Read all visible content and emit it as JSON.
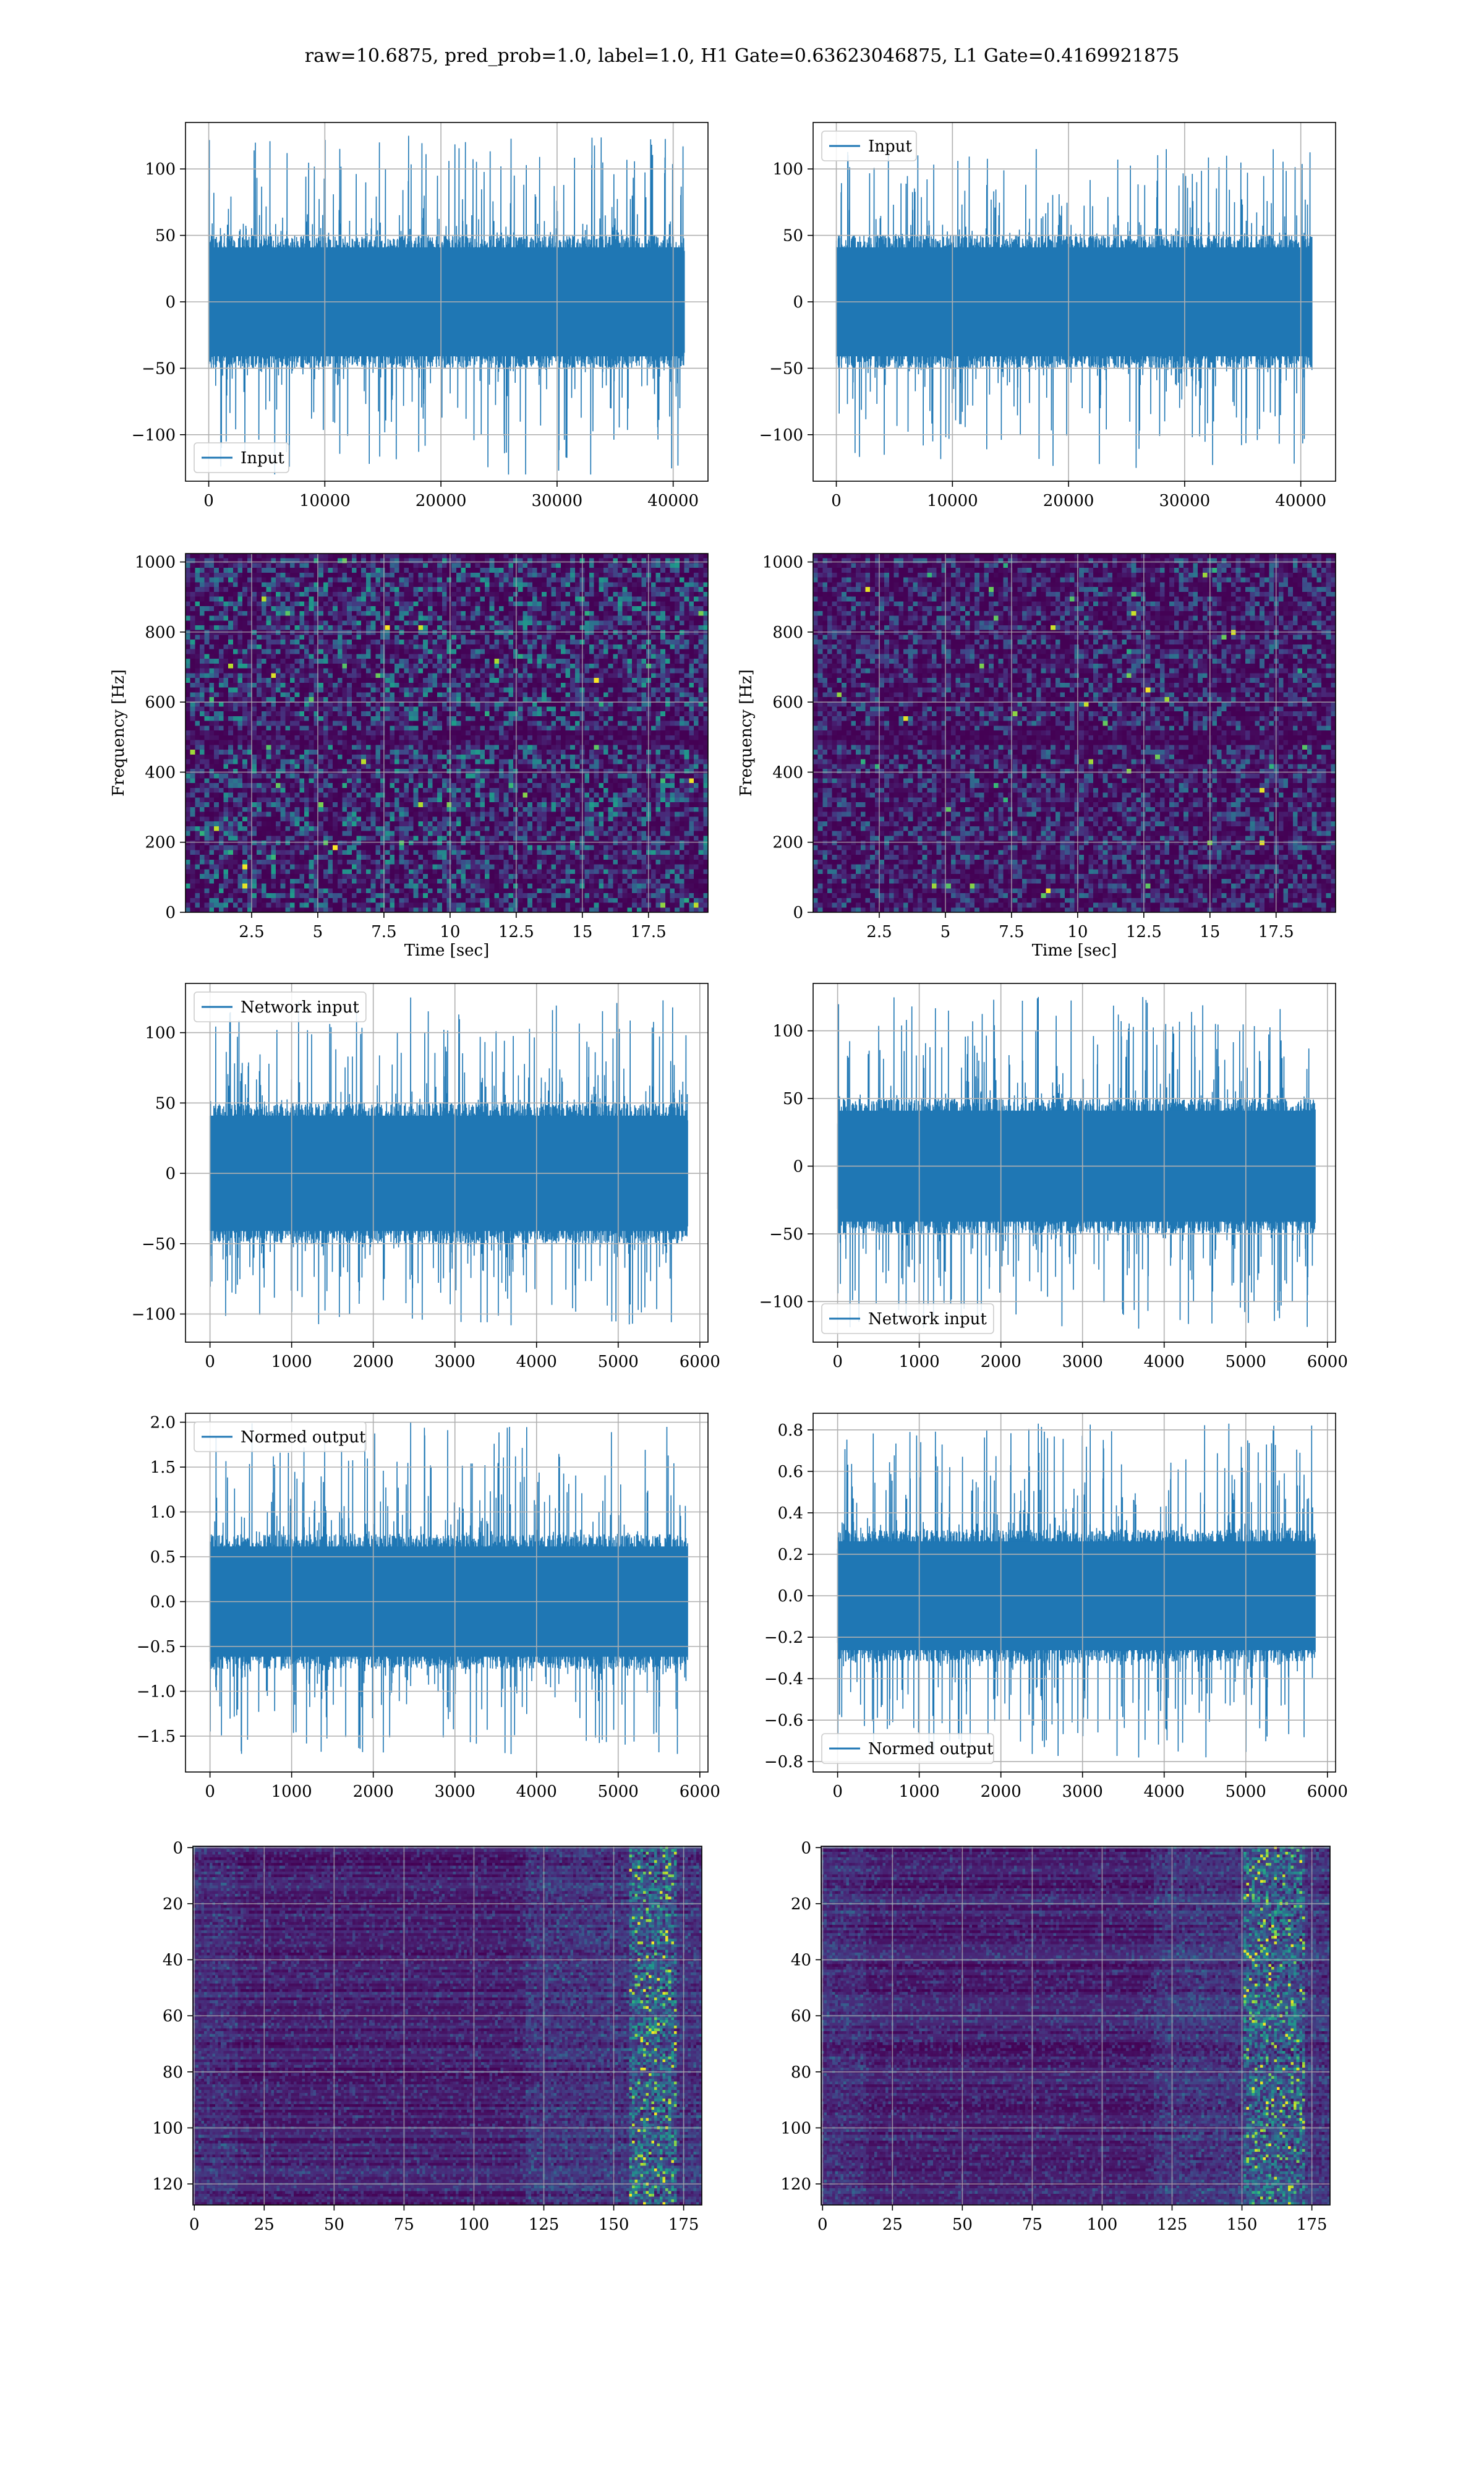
{
  "suptitle": "raw=10.6875, pred_prob=1.0, label=1.0, H1 Gate=0.63623046875, L1 Gate=0.4169921875",
  "colors": {
    "line": "#1f77b4",
    "grid": "#b0b0b0",
    "viridis_low": "#440154",
    "viridis_high": "#fde725"
  },
  "chart_data": [
    {
      "id": "input-h1",
      "type": "line",
      "legend": [
        "Input"
      ],
      "legend_loc": "lower left",
      "xlim": [
        -2000,
        43000
      ],
      "ylim": [
        -135,
        135
      ],
      "xticks": [
        0,
        10000,
        20000,
        30000,
        40000
      ],
      "yticks": [
        -100,
        -50,
        0,
        50,
        100
      ],
      "x_range": [
        0,
        40960
      ],
      "envelope": {
        "core": 50,
        "peak_max": 125,
        "peak_min": -130
      },
      "xlabel": "",
      "ylabel": "",
      "grid": true
    },
    {
      "id": "input-l1",
      "type": "line",
      "legend": [
        "Input"
      ],
      "legend_loc": "upper left",
      "xlim": [
        -2000,
        43000
      ],
      "ylim": [
        -135,
        135
      ],
      "xticks": [
        0,
        10000,
        20000,
        30000,
        40000
      ],
      "yticks": [
        -100,
        -50,
        0,
        50,
        100
      ],
      "x_range": [
        0,
        40960
      ],
      "envelope": {
        "core": 50,
        "peak_max": 115,
        "peak_min": -125
      },
      "xlabel": "",
      "ylabel": "",
      "grid": true
    },
    {
      "id": "spec-h1",
      "type": "heatmap",
      "colormap": "viridis",
      "xlim": [
        0,
        19.75
      ],
      "ylim": [
        0,
        1024
      ],
      "xticks": [
        2.5,
        5.0,
        7.5,
        10.0,
        12.5,
        15.0,
        17.5
      ],
      "yticks": [
        0,
        200,
        400,
        600,
        800,
        1000
      ],
      "xlabel": "Time [sec]",
      "ylabel": "Frequency [Hz]",
      "grid": true,
      "intensity": 0.55
    },
    {
      "id": "spec-l1",
      "type": "heatmap",
      "colormap": "viridis",
      "xlim": [
        0,
        19.75
      ],
      "ylim": [
        0,
        1024
      ],
      "xticks": [
        2.5,
        5.0,
        7.5,
        10.0,
        12.5,
        15.0,
        17.5
      ],
      "yticks": [
        0,
        200,
        400,
        600,
        800,
        1000
      ],
      "xlabel": "Time [sec]",
      "ylabel": "Frequency [Hz]",
      "grid": true,
      "intensity": 0.4
    },
    {
      "id": "net-h1",
      "type": "line",
      "legend": [
        "Network input"
      ],
      "legend_loc": "upper left",
      "xlim": [
        -300,
        6100
      ],
      "ylim": [
        -120,
        135
      ],
      "xticks": [
        0,
        1000,
        2000,
        3000,
        4000,
        5000,
        6000
      ],
      "yticks": [
        -100,
        -50,
        0,
        50,
        100
      ],
      "x_range": [
        0,
        5850
      ],
      "envelope": {
        "core": 50,
        "peak_max": 125,
        "peak_min": -108
      },
      "xlabel": "",
      "ylabel": "",
      "grid": true
    },
    {
      "id": "net-l1",
      "type": "line",
      "legend": [
        "Network input"
      ],
      "legend_loc": "lower left",
      "xlim": [
        -300,
        6100
      ],
      "ylim": [
        -130,
        135
      ],
      "xticks": [
        0,
        1000,
        2000,
        3000,
        4000,
        5000,
        6000
      ],
      "yticks": [
        -100,
        -50,
        0,
        50,
        100
      ],
      "x_range": [
        0,
        5850
      ],
      "envelope": {
        "core": 50,
        "peak_max": 125,
        "peak_min": -120
      },
      "xlabel": "",
      "ylabel": "",
      "grid": true
    },
    {
      "id": "norm-h1",
      "type": "line",
      "legend": [
        "Normed output"
      ],
      "legend_loc": "upper left",
      "xlim": [
        -300,
        6100
      ],
      "ylim": [
        -1.9,
        2.1
      ],
      "xticks": [
        0,
        1000,
        2000,
        3000,
        4000,
        5000,
        6000
      ],
      "yticks": [
        -1.5,
        -1.0,
        -0.5,
        0.0,
        0.5,
        1.0,
        1.5,
        2.0
      ],
      "ytick_labels": [
        "−1.5",
        "−1.0",
        "−0.5",
        "0.0",
        "0.5",
        "1.0",
        "1.5",
        "2.0"
      ],
      "x_range": [
        0,
        5850
      ],
      "envelope": {
        "core": 0.75,
        "peak_max": 2.0,
        "peak_min": -1.7
      },
      "xlabel": "",
      "ylabel": "",
      "grid": true
    },
    {
      "id": "norm-l1",
      "type": "line",
      "legend": [
        "Normed output"
      ],
      "legend_loc": "lower left",
      "xlim": [
        -300,
        6100
      ],
      "ylim": [
        -0.85,
        0.88
      ],
      "xticks": [
        0,
        1000,
        2000,
        3000,
        4000,
        5000,
        6000
      ],
      "yticks": [
        -0.8,
        -0.6,
        -0.4,
        -0.2,
        0.0,
        0.2,
        0.4,
        0.6,
        0.8
      ],
      "ytick_labels": [
        "−0.8",
        "−0.6",
        "−0.4",
        "−0.2",
        "0.0",
        "0.2",
        "0.4",
        "0.6",
        "0.8"
      ],
      "x_range": [
        0,
        5850
      ],
      "envelope": {
        "core": 0.32,
        "peak_max": 0.83,
        "peak_min": -0.78
      },
      "xlabel": "",
      "ylabel": "",
      "grid": true
    },
    {
      "id": "feat-h1",
      "type": "heatmap",
      "colormap": "viridis",
      "origin": "upper",
      "xlim": [
        -0.5,
        181.5
      ],
      "ylim": [
        127.5,
        -0.5
      ],
      "xticks": [
        0,
        25,
        50,
        75,
        100,
        125,
        150,
        175
      ],
      "yticks": [
        0,
        20,
        40,
        60,
        80,
        100,
        120
      ],
      "xlabel": "",
      "ylabel": "",
      "grid": true,
      "hot_band": [
        155,
        172
      ]
    },
    {
      "id": "feat-l1",
      "type": "heatmap",
      "colormap": "viridis",
      "origin": "upper",
      "xlim": [
        -0.5,
        181.5
      ],
      "ylim": [
        127.5,
        -0.5
      ],
      "xticks": [
        0,
        25,
        50,
        75,
        100,
        125,
        150,
        175
      ],
      "yticks": [
        0,
        20,
        40,
        60,
        80,
        100,
        120
      ],
      "xlabel": "",
      "ylabel": "",
      "grid": true,
      "hot_band": [
        150,
        172
      ]
    }
  ]
}
